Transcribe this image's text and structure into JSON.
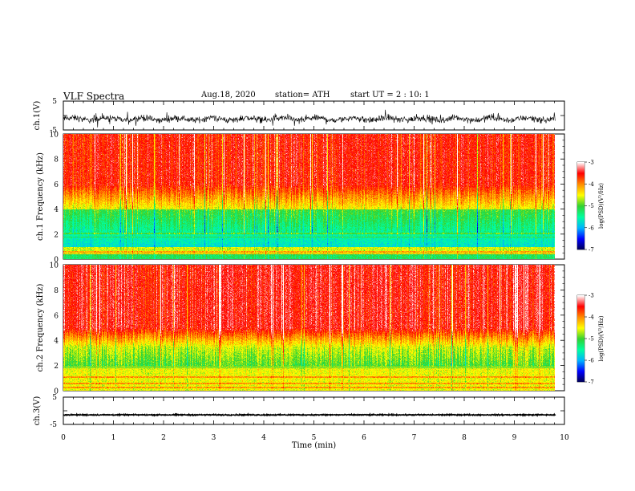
{
  "header": {
    "title": "VLF Spectra",
    "date": "Aug.18, 2020",
    "station": "station= ATH",
    "start": "start UT = 2 : 10: 1"
  },
  "colors": {
    "waveform": "#000000",
    "colormap": [
      "#000050",
      "#0000ff",
      "#00b4ff",
      "#00ffa0",
      "#32d232",
      "#ffff00",
      "#ff8c00",
      "#ff0000",
      "#ffffff"
    ]
  },
  "chart_data": [
    {
      "type": "line",
      "panel": "ch1-waveform",
      "ylabel": "ch.1(V)",
      "ylim": [
        -5,
        5
      ],
      "yticks": [
        "5",
        "-5"
      ],
      "xlim": [
        0,
        10
      ],
      "description_values": {
        "mean_level": -1.2,
        "amplitude": 1.6
      }
    },
    {
      "type": "heatmap",
      "panel": "ch1-spectrogram",
      "ylabel": "ch.1 Frequency (kHz)",
      "ylim": [
        0,
        10
      ],
      "yticks": [
        "0",
        "2",
        "4",
        "6",
        "8",
        "10"
      ],
      "xlim": [
        0,
        9.8
      ],
      "colorbar": {
        "label": "log(PSD)(V²/Hz)",
        "range": [
          -7,
          -3
        ],
        "ticks": [
          "-3",
          "-4",
          "-5",
          "-6",
          "-7"
        ]
      }
    },
    {
      "type": "heatmap",
      "panel": "ch2-spectrogram",
      "ylabel": "ch.2 Frequency (kHz)",
      "ylim": [
        0,
        10
      ],
      "yticks": [
        "0",
        "2",
        "4",
        "6",
        "8",
        "10"
      ],
      "xlim": [
        0,
        9.8
      ],
      "colorbar": {
        "label": "log(PSD)(V²/Hz)",
        "range": [
          -7,
          -3
        ],
        "ticks": [
          "-3",
          "-4",
          "-5",
          "-6",
          "-7"
        ]
      }
    },
    {
      "type": "line",
      "panel": "ch3-waveform",
      "ylabel": "ch.3(V)",
      "ylim": [
        -5,
        5
      ],
      "yticks": [
        "5",
        "-5"
      ],
      "xlim": [
        0,
        10
      ],
      "description_values": {
        "mean_level": -1.5,
        "amplitude": 0.3
      }
    }
  ],
  "xaxis": {
    "label": "Time (min)",
    "ticks": [
      "0",
      "1",
      "2",
      "3",
      "4",
      "5",
      "6",
      "7",
      "8",
      "9",
      "10"
    ],
    "range": [
      0,
      10
    ]
  }
}
